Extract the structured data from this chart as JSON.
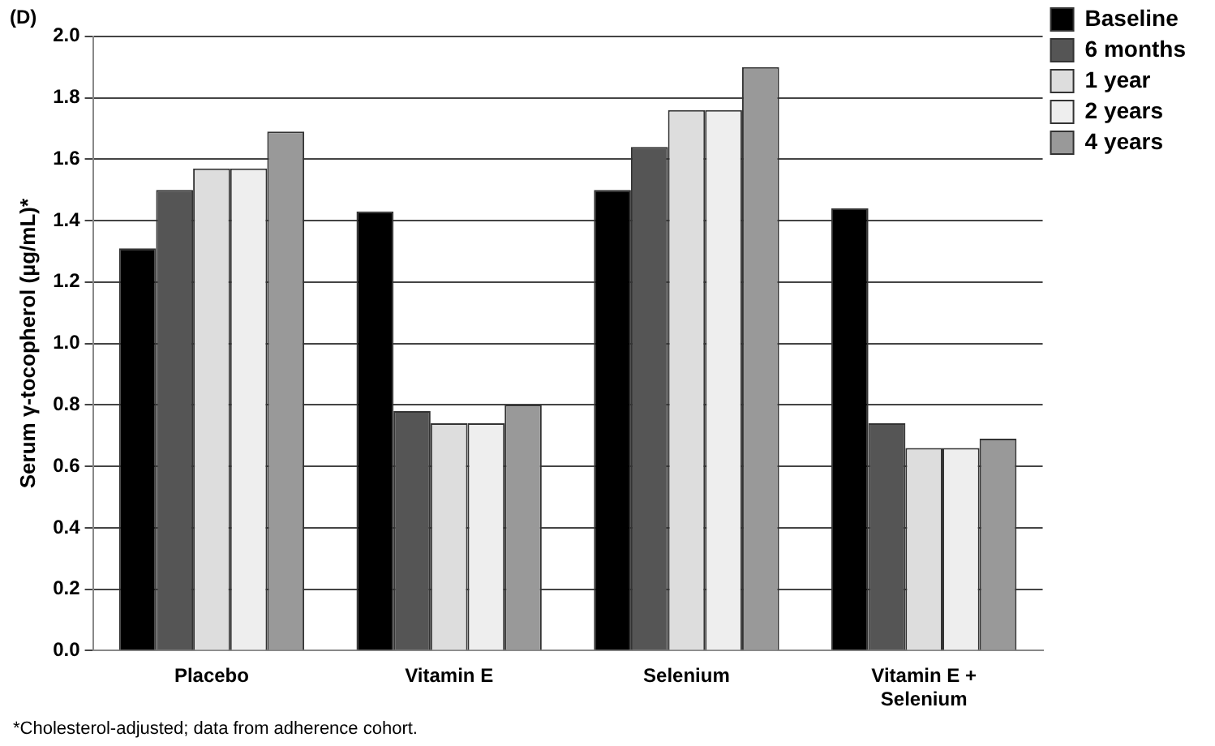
{
  "chart_data": {
    "type": "bar",
    "title": "(D)",
    "ylabel": "Serum γ-tocopherol (µg/mL)*",
    "categories": [
      "Placebo",
      "Vitamin E",
      "Selenium",
      "Vitamin E + Selenium"
    ],
    "series": [
      {
        "name": "Baseline",
        "color": "#000000",
        "values": [
          1.31,
          1.43,
          1.5,
          1.44
        ]
      },
      {
        "name": "6 months",
        "color": "#555555",
        "values": [
          1.5,
          0.78,
          1.64,
          0.74
        ]
      },
      {
        "name": "1 year",
        "color": "#dddddd",
        "values": [
          1.57,
          0.74,
          1.76,
          0.66
        ]
      },
      {
        "name": "2 years",
        "color": "#eeeeee",
        "values": [
          1.57,
          0.74,
          1.76,
          0.66
        ]
      },
      {
        "name": "4 years",
        "color": "#999999",
        "values": [
          1.69,
          0.8,
          1.9,
          0.69
        ]
      }
    ],
    "ylim": [
      0,
      2
    ],
    "yticks": [
      {
        "value": 0,
        "label": "0.0"
      },
      0.2,
      0.4,
      0.6,
      0.8,
      {
        "value": 1,
        "label": "1.0"
      },
      1.2,
      1.4,
      1.6,
      1.8,
      {
        "value": 2,
        "label": "2.0"
      }
    ],
    "grid": "y",
    "legend": "top right",
    "annotations": [
      "*Cholesterol-adjusted; data from adherence cohort."
    ]
  }
}
